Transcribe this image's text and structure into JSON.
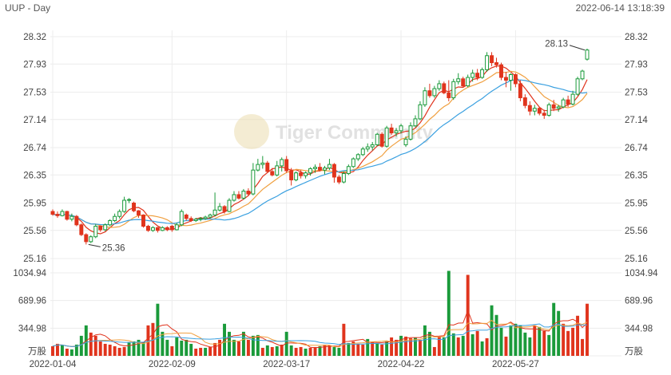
{
  "header": {
    "title": "UUP - Day",
    "timestamp": "2022-06-14 13:18:39"
  },
  "watermark": "Tiger Community",
  "chart_data": {
    "type": "candlestick",
    "price_axis": {
      "ticks": [
        "28.32",
        "27.93",
        "27.53",
        "27.14",
        "26.74",
        "26.35",
        "25.95",
        "25.56",
        "25.16"
      ],
      "range": [
        25.16,
        28.32
      ]
    },
    "volume_axis": {
      "ticks": [
        "1034.94",
        "689.96",
        "344.98"
      ],
      "unit": "万股",
      "range": [
        0,
        1034.94
      ]
    },
    "x_axis": {
      "ticks": [
        "2022-01-04",
        "2022-02-09",
        "2022-03-17",
        "2022-04-22",
        "2022-05-27"
      ],
      "tick_index": [
        0,
        25,
        49,
        73,
        97
      ]
    },
    "annotations": [
      {
        "text": "25.36",
        "index": 7,
        "value": 25.36
      },
      {
        "text": "28.13",
        "index": 112,
        "value": 28.13
      }
    ],
    "colors": {
      "up": "#1a9a3a",
      "down": "#e0341d",
      "ma_fast": "#e0341d",
      "ma_mid": "#f0a040",
      "ma_slow": "#3aa0e0"
    },
    "candles": [
      [
        25.83,
        25.86,
        25.77,
        25.79
      ],
      [
        25.79,
        25.83,
        25.74,
        25.77
      ],
      [
        25.77,
        25.86,
        25.76,
        25.83
      ],
      [
        25.83,
        25.84,
        25.7,
        25.72
      ],
      [
        25.72,
        25.8,
        25.69,
        25.76
      ],
      [
        25.76,
        25.78,
        25.62,
        25.64
      ],
      [
        25.64,
        25.66,
        25.48,
        25.5
      ],
      [
        25.5,
        25.52,
        25.36,
        25.4
      ],
      [
        25.4,
        25.49,
        25.38,
        25.47
      ],
      [
        25.47,
        25.65,
        25.45,
        25.62
      ],
      [
        25.62,
        25.63,
        25.54,
        25.57
      ],
      [
        25.57,
        25.66,
        25.55,
        25.64
      ],
      [
        25.64,
        25.72,
        25.62,
        25.7
      ],
      [
        25.7,
        25.8,
        25.68,
        25.76
      ],
      [
        25.76,
        25.86,
        25.73,
        25.83
      ],
      [
        25.83,
        26.04,
        25.81,
        25.99
      ],
      [
        25.99,
        26.02,
        25.95,
        26.0
      ],
      [
        25.95,
        25.97,
        25.82,
        25.84
      ],
      [
        25.84,
        25.85,
        25.74,
        25.78
      ],
      [
        25.78,
        25.79,
        25.6,
        25.62
      ],
      [
        25.62,
        25.64,
        25.54,
        25.56
      ],
      [
        25.56,
        25.62,
        25.54,
        25.6
      ],
      [
        25.6,
        25.61,
        25.53,
        25.56
      ],
      [
        25.56,
        25.62,
        25.55,
        25.6
      ],
      [
        25.6,
        25.62,
        25.55,
        25.57
      ],
      [
        25.62,
        25.64,
        25.54,
        25.57
      ],
      [
        25.57,
        25.67,
        25.56,
        25.64
      ],
      [
        25.64,
        25.86,
        25.62,
        25.83
      ],
      [
        25.78,
        25.8,
        25.7,
        25.73
      ],
      [
        25.73,
        25.76,
        25.68,
        25.7
      ],
      [
        25.7,
        25.74,
        25.68,
        25.72
      ],
      [
        25.72,
        25.75,
        25.69,
        25.73
      ],
      [
        25.73,
        25.77,
        25.71,
        25.75
      ],
      [
        25.75,
        25.8,
        25.73,
        25.78
      ],
      [
        25.78,
        26.1,
        25.76,
        25.85
      ],
      [
        25.85,
        25.95,
        25.83,
        25.9
      ],
      [
        25.9,
        25.92,
        25.8,
        25.83
      ],
      [
        25.83,
        26.02,
        25.82,
        25.99
      ],
      [
        25.99,
        26.12,
        25.97,
        26.07
      ],
      [
        26.07,
        26.12,
        26.0,
        26.02
      ],
      [
        26.02,
        26.15,
        26.0,
        26.12
      ],
      [
        26.12,
        26.16,
        26.05,
        26.08
      ],
      [
        26.08,
        26.52,
        26.06,
        26.42
      ],
      [
        26.42,
        26.58,
        26.4,
        26.5
      ],
      [
        26.5,
        26.62,
        26.44,
        26.52
      ],
      [
        26.52,
        26.55,
        26.38,
        26.4
      ],
      [
        26.4,
        26.45,
        26.33,
        26.35
      ],
      [
        26.35,
        26.55,
        26.33,
        26.48
      ],
      [
        26.48,
        26.6,
        26.4,
        26.57
      ],
      [
        26.57,
        26.62,
        26.38,
        26.41
      ],
      [
        26.41,
        26.45,
        26.2,
        26.28
      ],
      [
        26.28,
        26.4,
        26.26,
        26.38
      ],
      [
        26.38,
        26.42,
        26.3,
        26.34
      ],
      [
        26.34,
        26.4,
        26.3,
        26.38
      ],
      [
        26.38,
        26.46,
        26.34,
        26.44
      ],
      [
        26.44,
        26.5,
        26.38,
        26.46
      ],
      [
        26.46,
        26.52,
        26.4,
        26.42
      ],
      [
        26.42,
        26.48,
        26.36,
        26.45
      ],
      [
        26.45,
        26.58,
        26.42,
        26.5
      ],
      [
        26.5,
        26.52,
        26.24,
        26.32
      ],
      [
        26.32,
        26.35,
        26.22,
        26.25
      ],
      [
        26.25,
        26.4,
        26.23,
        26.37
      ],
      [
        26.37,
        26.5,
        26.35,
        26.47
      ],
      [
        26.47,
        26.6,
        26.45,
        26.58
      ],
      [
        26.58,
        26.66,
        26.55,
        26.64
      ],
      [
        26.64,
        26.75,
        26.62,
        26.72
      ],
      [
        26.72,
        26.8,
        26.68,
        26.75
      ],
      [
        26.75,
        26.82,
        26.7,
        26.78
      ],
      [
        26.78,
        26.95,
        26.76,
        26.93
      ],
      [
        26.93,
        26.96,
        26.74,
        26.76
      ],
      [
        26.76,
        27.05,
        26.74,
        27.02
      ],
      [
        27.02,
        27.08,
        26.92,
        26.95
      ],
      [
        26.95,
        27.02,
        26.9,
        26.98
      ],
      [
        26.98,
        27.08,
        26.94,
        27.05
      ],
      [
        26.78,
        26.9,
        26.75,
        26.86
      ],
      [
        26.86,
        27.1,
        26.84,
        27.05
      ],
      [
        27.05,
        27.2,
        27.03,
        27.15
      ],
      [
        27.15,
        27.4,
        27.13,
        27.35
      ],
      [
        27.35,
        27.6,
        27.32,
        27.55
      ],
      [
        27.55,
        27.65,
        27.45,
        27.48
      ],
      [
        27.48,
        27.62,
        27.45,
        27.58
      ],
      [
        27.58,
        27.7,
        27.55,
        27.65
      ],
      [
        27.65,
        27.68,
        27.5,
        27.52
      ],
      [
        27.52,
        27.7,
        27.4,
        27.45
      ],
      [
        27.45,
        27.72,
        27.42,
        27.68
      ],
      [
        27.68,
        27.8,
        27.64,
        27.72
      ],
      [
        27.72,
        27.75,
        27.6,
        27.62
      ],
      [
        27.62,
        27.78,
        27.6,
        27.74
      ],
      [
        27.74,
        27.85,
        27.68,
        27.8
      ],
      [
        27.8,
        27.86,
        27.7,
        27.74
      ],
      [
        27.74,
        27.88,
        27.72,
        27.85
      ],
      [
        27.85,
        28.1,
        27.82,
        28.05
      ],
      [
        28.05,
        28.1,
        27.9,
        27.95
      ],
      [
        27.95,
        28.02,
        27.88,
        27.92
      ],
      [
        27.92,
        27.95,
        27.7,
        27.74
      ],
      [
        27.74,
        27.82,
        27.6,
        27.7
      ],
      [
        27.7,
        27.8,
        27.55,
        27.78
      ],
      [
        27.78,
        27.8,
        27.6,
        27.65
      ],
      [
        27.65,
        27.7,
        27.4,
        27.45
      ],
      [
        27.45,
        27.5,
        27.3,
        27.34
      ],
      [
        27.34,
        27.4,
        27.2,
        27.26
      ],
      [
        27.26,
        27.35,
        27.2,
        27.3
      ],
      [
        27.3,
        27.32,
        27.2,
        27.23
      ],
      [
        27.23,
        27.28,
        27.15,
        27.2
      ],
      [
        27.2,
        27.38,
        27.18,
        27.35
      ],
      [
        27.35,
        27.42,
        27.26,
        27.3
      ],
      [
        27.3,
        27.35,
        27.25,
        27.32
      ],
      [
        27.32,
        27.45,
        27.3,
        27.42
      ],
      [
        27.42,
        27.48,
        27.32,
        27.36
      ],
      [
        27.36,
        27.55,
        27.34,
        27.5
      ],
      [
        27.5,
        27.75,
        27.48,
        27.72
      ],
      [
        27.72,
        27.85,
        27.7,
        27.83
      ],
      [
        28.0,
        28.15,
        27.98,
        28.13
      ]
    ],
    "volumes": [
      [
        120,
        0
      ],
      [
        150,
        0
      ],
      [
        135,
        1
      ],
      [
        90,
        0
      ],
      [
        80,
        1
      ],
      [
        140,
        1
      ],
      [
        250,
        1
      ],
      [
        380,
        1
      ],
      [
        290,
        0
      ],
      [
        250,
        0
      ],
      [
        180,
        0
      ],
      [
        150,
        0
      ],
      [
        140,
        0
      ],
      [
        120,
        0
      ],
      [
        100,
        0
      ],
      [
        110,
        0
      ],
      [
        170,
        1
      ],
      [
        180,
        1
      ],
      [
        200,
        1
      ],
      [
        170,
        1
      ],
      [
        380,
        0
      ],
      [
        410,
        0
      ],
      [
        650,
        1
      ],
      [
        300,
        1
      ],
      [
        200,
        1
      ],
      [
        120,
        0
      ],
      [
        230,
        1
      ],
      [
        190,
        1
      ],
      [
        200,
        1
      ],
      [
        150,
        1
      ],
      [
        90,
        0
      ],
      [
        100,
        0
      ],
      [
        100,
        1
      ],
      [
        110,
        0
      ],
      [
        160,
        0
      ],
      [
        200,
        0
      ],
      [
        400,
        1
      ],
      [
        300,
        1
      ],
      [
        200,
        1
      ],
      [
        180,
        0
      ],
      [
        300,
        1
      ],
      [
        200,
        0
      ],
      [
        250,
        1
      ],
      [
        260,
        1
      ],
      [
        100,
        0
      ],
      [
        130,
        1
      ],
      [
        110,
        0
      ],
      [
        120,
        1
      ],
      [
        140,
        0
      ],
      [
        300,
        1
      ],
      [
        130,
        1
      ],
      [
        100,
        0
      ],
      [
        110,
        0
      ],
      [
        90,
        1
      ],
      [
        100,
        0
      ],
      [
        110,
        0
      ],
      [
        120,
        1
      ],
      [
        140,
        0
      ],
      [
        130,
        0
      ],
      [
        110,
        1
      ],
      [
        100,
        1
      ],
      [
        400,
        0
      ],
      [
        160,
        1
      ],
      [
        180,
        0
      ],
      [
        150,
        0
      ],
      [
        140,
        0
      ],
      [
        210,
        1
      ],
      [
        170,
        0
      ],
      [
        160,
        1
      ],
      [
        140,
        0
      ],
      [
        180,
        1
      ],
      [
        230,
        0
      ],
      [
        200,
        0
      ],
      [
        250,
        1
      ],
      [
        240,
        0
      ],
      [
        220,
        0
      ],
      [
        230,
        1
      ],
      [
        200,
        0
      ],
      [
        380,
        1
      ],
      [
        300,
        1
      ],
      [
        110,
        0
      ],
      [
        240,
        0
      ],
      [
        230,
        1
      ],
      [
        1060,
        1
      ],
      [
        280,
        1
      ],
      [
        230,
        0
      ],
      [
        250,
        1
      ],
      [
        1010,
        0
      ],
      [
        270,
        1
      ],
      [
        310,
        0
      ],
      [
        180,
        1
      ],
      [
        220,
        0
      ],
      [
        630,
        1
      ],
      [
        510,
        1
      ],
      [
        350,
        1
      ],
      [
        240,
        0
      ],
      [
        380,
        1
      ],
      [
        400,
        1
      ],
      [
        380,
        1
      ],
      [
        290,
        1
      ],
      [
        230,
        1
      ],
      [
        380,
        0
      ],
      [
        360,
        1
      ],
      [
        310,
        0
      ],
      [
        260,
        1
      ],
      [
        660,
        1
      ],
      [
        560,
        1
      ],
      [
        400,
        0
      ],
      [
        310,
        0
      ],
      [
        350,
        0
      ],
      [
        500,
        0
      ],
      [
        210,
        0
      ],
      [
        650,
        0
      ]
    ]
  }
}
